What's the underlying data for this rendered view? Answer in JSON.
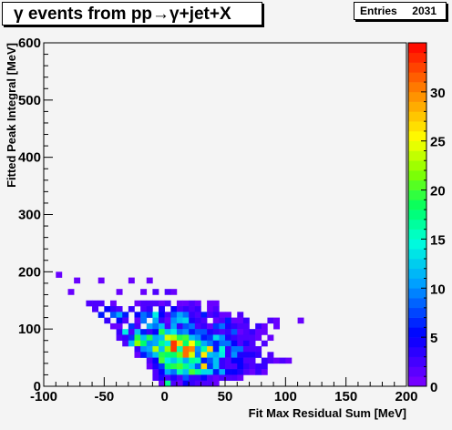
{
  "title": "γ events from pp→γ+jet+X",
  "stats": {
    "label": "Entries",
    "value": "2031"
  },
  "colors": {
    "frame": "#000000",
    "plot_bg": "#f4f4f4"
  },
  "chart_data": {
    "type": "heatmap",
    "xlabel": "Fit Max Residual Sum [MeV]",
    "ylabel": "Fitted Peak Integral [MeV]",
    "xlim": [
      -100,
      200
    ],
    "ylim": [
      0,
      600
    ],
    "bin_width_x": 5,
    "bin_width_y": 10,
    "x_ticks": [
      "-100",
      "-50",
      "0",
      "50",
      "100",
      "150",
      "200"
    ],
    "y_ticks": [
      "0",
      "100",
      "200",
      "300",
      "400",
      "500",
      "600"
    ],
    "zlim": [
      0,
      35
    ],
    "z_ticks": [
      "0",
      "5",
      "10",
      "15",
      "20",
      "25",
      "30"
    ],
    "entries": 2031,
    "bins": [
      [
        -90,
        190,
        1
      ],
      [
        -75,
        180,
        1
      ],
      [
        -55,
        180,
        1
      ],
      [
        -30,
        180,
        1
      ],
      [
        -15,
        180,
        1
      ],
      [
        -80,
        160,
        1
      ],
      [
        -40,
        160,
        1
      ],
      [
        -20,
        160,
        1
      ],
      [
        -10,
        160,
        2
      ],
      [
        0,
        160,
        2
      ],
      [
        5,
        160,
        1
      ],
      [
        -65,
        140,
        2
      ],
      [
        -60,
        140,
        2
      ],
      [
        -55,
        140,
        2
      ],
      [
        -45,
        140,
        1
      ],
      [
        -25,
        140,
        1
      ],
      [
        -20,
        140,
        2
      ],
      [
        -15,
        140,
        2
      ],
      [
        -10,
        140,
        2
      ],
      [
        -5,
        140,
        1
      ],
      [
        0,
        140,
        2
      ],
      [
        10,
        140,
        1
      ],
      [
        15,
        140,
        1
      ],
      [
        20,
        140,
        2
      ],
      [
        25,
        140,
        1
      ],
      [
        35,
        140,
        1
      ],
      [
        40,
        140,
        1
      ],
      [
        -60,
        130,
        2
      ],
      [
        -50,
        130,
        5
      ],
      [
        -45,
        130,
        3
      ],
      [
        -40,
        130,
        2
      ],
      [
        -30,
        130,
        3
      ],
      [
        -20,
        130,
        2
      ],
      [
        -15,
        130,
        3
      ],
      [
        -5,
        130,
        4
      ],
      [
        5,
        130,
        5
      ],
      [
        10,
        130,
        2
      ],
      [
        15,
        130,
        3
      ],
      [
        20,
        130,
        2
      ],
      [
        25,
        130,
        3
      ],
      [
        35,
        130,
        1
      ],
      [
        40,
        130,
        2
      ],
      [
        -55,
        120,
        6
      ],
      [
        -45,
        120,
        8
      ],
      [
        -40,
        120,
        11
      ],
      [
        -35,
        120,
        6
      ],
      [
        -25,
        120,
        5
      ],
      [
        -20,
        120,
        9
      ],
      [
        -15,
        120,
        7
      ],
      [
        -10,
        120,
        14
      ],
      [
        -5,
        120,
        5
      ],
      [
        0,
        120,
        2
      ],
      [
        5,
        120,
        8
      ],
      [
        10,
        120,
        11
      ],
      [
        15,
        120,
        9
      ],
      [
        20,
        120,
        3
      ],
      [
        25,
        120,
        2
      ],
      [
        30,
        120,
        6
      ],
      [
        35,
        120,
        2
      ],
      [
        40,
        120,
        3
      ],
      [
        45,
        120,
        1
      ],
      [
        50,
        120,
        1
      ],
      [
        60,
        120,
        2
      ],
      [
        -50,
        110,
        3
      ],
      [
        -40,
        110,
        5
      ],
      [
        -35,
        110,
        2
      ],
      [
        -25,
        110,
        1
      ],
      [
        -20,
        110,
        9
      ],
      [
        -10,
        110,
        11
      ],
      [
        -5,
        110,
        3
      ],
      [
        0,
        110,
        1
      ],
      [
        5,
        110,
        10
      ],
      [
        10,
        110,
        12
      ],
      [
        15,
        110,
        13
      ],
      [
        20,
        110,
        4
      ],
      [
        25,
        110,
        3
      ],
      [
        30,
        110,
        2
      ],
      [
        40,
        110,
        1
      ],
      [
        45,
        110,
        2
      ],
      [
        50,
        110,
        6
      ],
      [
        55,
        110,
        1
      ],
      [
        60,
        110,
        1
      ],
      [
        65,
        110,
        3
      ],
      [
        85,
        110,
        2
      ],
      [
        90,
        110,
        1
      ],
      [
        110,
        110,
        1
      ],
      [
        -45,
        100,
        1
      ],
      [
        -40,
        100,
        1
      ],
      [
        -30,
        100,
        7
      ],
      [
        -25,
        100,
        2
      ],
      [
        -15,
        100,
        11
      ],
      [
        -10,
        100,
        9
      ],
      [
        -5,
        100,
        12
      ],
      [
        0,
        100,
        2
      ],
      [
        5,
        100,
        11
      ],
      [
        10,
        100,
        3
      ],
      [
        15,
        100,
        8
      ],
      [
        20,
        100,
        9
      ],
      [
        25,
        100,
        2
      ],
      [
        30,
        100,
        3
      ],
      [
        35,
        100,
        1
      ],
      [
        40,
        100,
        7
      ],
      [
        45,
        100,
        9
      ],
      [
        50,
        100,
        4
      ],
      [
        55,
        100,
        3
      ],
      [
        60,
        100,
        2
      ],
      [
        65,
        100,
        2
      ],
      [
        75,
        100,
        3
      ],
      [
        80,
        100,
        1
      ],
      [
        90,
        100,
        1
      ],
      [
        -40,
        90,
        3
      ],
      [
        -35,
        90,
        14
      ],
      [
        -30,
        90,
        2
      ],
      [
        -25,
        90,
        12
      ],
      [
        -20,
        90,
        6
      ],
      [
        -15,
        90,
        3
      ],
      [
        -10,
        90,
        5
      ],
      [
        -5,
        90,
        19
      ],
      [
        0,
        90,
        12
      ],
      [
        5,
        90,
        14
      ],
      [
        10,
        90,
        9
      ],
      [
        15,
        90,
        10
      ],
      [
        20,
        90,
        6
      ],
      [
        25,
        90,
        8
      ],
      [
        30,
        90,
        8
      ],
      [
        35,
        90,
        4
      ],
      [
        40,
        90,
        3
      ],
      [
        45,
        90,
        2
      ],
      [
        50,
        90,
        3
      ],
      [
        55,
        90,
        8
      ],
      [
        60,
        90,
        1
      ],
      [
        65,
        90,
        2
      ],
      [
        70,
        90,
        3
      ],
      [
        75,
        90,
        1
      ],
      [
        80,
        90,
        1
      ],
      [
        -40,
        80,
        2
      ],
      [
        -35,
        80,
        3
      ],
      [
        -30,
        80,
        7
      ],
      [
        -25,
        80,
        19
      ],
      [
        -20,
        80,
        12
      ],
      [
        -15,
        80,
        19
      ],
      [
        -10,
        80,
        11
      ],
      [
        -5,
        80,
        12
      ],
      [
        0,
        80,
        24
      ],
      [
        5,
        80,
        23
      ],
      [
        10,
        80,
        19
      ],
      [
        15,
        80,
        20
      ],
      [
        20,
        80,
        12
      ],
      [
        25,
        80,
        10
      ],
      [
        30,
        80,
        6
      ],
      [
        35,
        80,
        7
      ],
      [
        40,
        80,
        13
      ],
      [
        45,
        80,
        10
      ],
      [
        50,
        80,
        4
      ],
      [
        55,
        80,
        3
      ],
      [
        60,
        80,
        2
      ],
      [
        65,
        80,
        2
      ],
      [
        70,
        80,
        2
      ],
      [
        75,
        80,
        1
      ],
      [
        85,
        80,
        1
      ],
      [
        -35,
        70,
        2
      ],
      [
        -30,
        70,
        12
      ],
      [
        -25,
        70,
        22
      ],
      [
        -20,
        70,
        18
      ],
      [
        -15,
        70,
        10
      ],
      [
        -10,
        70,
        11
      ],
      [
        -5,
        70,
        17
      ],
      [
        0,
        70,
        14
      ],
      [
        5,
        70,
        33
      ],
      [
        10,
        70,
        27
      ],
      [
        15,
        70,
        18
      ],
      [
        20,
        70,
        25
      ],
      [
        25,
        70,
        18
      ],
      [
        30,
        70,
        11
      ],
      [
        35,
        70,
        9
      ],
      [
        40,
        70,
        6
      ],
      [
        45,
        70,
        9
      ],
      [
        50,
        70,
        9
      ],
      [
        55,
        70,
        5
      ],
      [
        60,
        70,
        2
      ],
      [
        65,
        70,
        4
      ],
      [
        70,
        70,
        2
      ],
      [
        80,
        70,
        2
      ],
      [
        -25,
        60,
        3
      ],
      [
        -20,
        60,
        10
      ],
      [
        -15,
        60,
        11
      ],
      [
        -10,
        60,
        23
      ],
      [
        -5,
        60,
        12
      ],
      [
        0,
        60,
        22
      ],
      [
        5,
        60,
        33
      ],
      [
        10,
        60,
        16
      ],
      [
        15,
        60,
        31
      ],
      [
        20,
        60,
        30
      ],
      [
        25,
        60,
        10
      ],
      [
        30,
        60,
        16
      ],
      [
        35,
        60,
        27
      ],
      [
        40,
        60,
        6
      ],
      [
        45,
        60,
        15
      ],
      [
        50,
        60,
        3
      ],
      [
        55,
        60,
        9
      ],
      [
        60,
        60,
        9
      ],
      [
        65,
        60,
        2
      ],
      [
        70,
        60,
        2
      ],
      [
        75,
        60,
        2
      ],
      [
        -25,
        50,
        1
      ],
      [
        -20,
        50,
        6
      ],
      [
        -15,
        50,
        9
      ],
      [
        -10,
        50,
        12
      ],
      [
        -5,
        50,
        19
      ],
      [
        0,
        50,
        18
      ],
      [
        5,
        50,
        18
      ],
      [
        10,
        50,
        21
      ],
      [
        15,
        50,
        31
      ],
      [
        20,
        50,
        24
      ],
      [
        25,
        50,
        9
      ],
      [
        30,
        50,
        26
      ],
      [
        35,
        50,
        12
      ],
      [
        40,
        50,
        11
      ],
      [
        45,
        50,
        14
      ],
      [
        50,
        50,
        3
      ],
      [
        55,
        50,
        10
      ],
      [
        60,
        50,
        4
      ],
      [
        65,
        50,
        4
      ],
      [
        70,
        50,
        4
      ],
      [
        75,
        50,
        3
      ],
      [
        85,
        50,
        2
      ],
      [
        -15,
        40,
        2
      ],
      [
        -10,
        40,
        5
      ],
      [
        -5,
        40,
        20
      ],
      [
        0,
        40,
        14
      ],
      [
        5,
        40,
        12
      ],
      [
        10,
        40,
        16
      ],
      [
        15,
        40,
        11
      ],
      [
        20,
        40,
        17
      ],
      [
        25,
        40,
        16
      ],
      [
        30,
        40,
        6
      ],
      [
        35,
        40,
        8
      ],
      [
        40,
        40,
        12
      ],
      [
        45,
        40,
        3
      ],
      [
        50,
        40,
        2
      ],
      [
        55,
        40,
        5
      ],
      [
        60,
        40,
        5
      ],
      [
        65,
        40,
        2
      ],
      [
        70,
        40,
        2
      ],
      [
        80,
        40,
        3
      ],
      [
        85,
        40,
        2
      ],
      [
        90,
        40,
        1
      ],
      [
        95,
        40,
        2
      ],
      [
        100,
        40,
        1
      ],
      [
        -15,
        30,
        1
      ],
      [
        -10,
        30,
        4
      ],
      [
        -5,
        30,
        7
      ],
      [
        0,
        30,
        18
      ],
      [
        5,
        30,
        19
      ],
      [
        10,
        30,
        20
      ],
      [
        15,
        30,
        17
      ],
      [
        20,
        30,
        13
      ],
      [
        25,
        30,
        8
      ],
      [
        30,
        30,
        27
      ],
      [
        35,
        30,
        7
      ],
      [
        40,
        30,
        12
      ],
      [
        45,
        30,
        3
      ],
      [
        50,
        30,
        2
      ],
      [
        55,
        30,
        2
      ],
      [
        60,
        30,
        5
      ],
      [
        65,
        30,
        3
      ],
      [
        70,
        30,
        2
      ],
      [
        75,
        30,
        3
      ],
      [
        80,
        30,
        3
      ],
      [
        -10,
        20,
        2
      ],
      [
        -5,
        20,
        5
      ],
      [
        0,
        20,
        11
      ],
      [
        5,
        20,
        9
      ],
      [
        10,
        20,
        16
      ],
      [
        15,
        20,
        12
      ],
      [
        20,
        20,
        20
      ],
      [
        25,
        20,
        17
      ],
      [
        30,
        20,
        13
      ],
      [
        35,
        20,
        13
      ],
      [
        40,
        20,
        6
      ],
      [
        45,
        20,
        11
      ],
      [
        50,
        20,
        5
      ],
      [
        55,
        20,
        5
      ],
      [
        60,
        20,
        4
      ],
      [
        65,
        20,
        2
      ],
      [
        70,
        20,
        1
      ],
      [
        75,
        20,
        3
      ],
      [
        80,
        20,
        1
      ],
      [
        -10,
        10,
        2
      ],
      [
        -5,
        10,
        4
      ],
      [
        0,
        10,
        2
      ],
      [
        5,
        10,
        4
      ],
      [
        10,
        10,
        2
      ],
      [
        15,
        10,
        8
      ],
      [
        20,
        10,
        3
      ],
      [
        25,
        10,
        3
      ],
      [
        30,
        10,
        5
      ],
      [
        35,
        10,
        2
      ],
      [
        40,
        10,
        1
      ],
      [
        45,
        10,
        2
      ],
      [
        50,
        10,
        2
      ],
      [
        55,
        10,
        2
      ],
      [
        60,
        10,
        1
      ],
      [
        -5,
        0,
        1
      ],
      [
        0,
        0,
        17
      ],
      [
        5,
        0,
        2
      ],
      [
        10,
        0,
        1
      ],
      [
        15,
        0,
        5
      ],
      [
        20,
        0,
        3
      ],
      [
        25,
        0,
        2
      ],
      [
        30,
        0,
        2
      ],
      [
        35,
        0,
        2
      ],
      [
        40,
        0,
        1
      ]
    ]
  }
}
